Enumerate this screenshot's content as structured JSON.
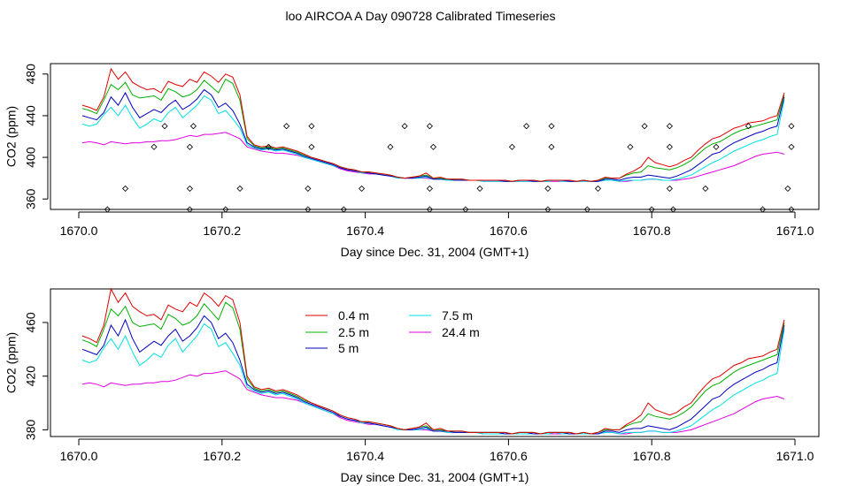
{
  "title": "loo AIRCOA A  Day 090728  Calibrated Timeseries",
  "chart_data": [
    {
      "type": "line",
      "xlabel": "Day since Dec. 31, 2004 (GMT+1)",
      "ylabel": "CO2 (ppm)",
      "xlim": [
        1670.0,
        1671.0
      ],
      "ylim": [
        350,
        490
      ],
      "xticks": [
        1670.0,
        1670.2,
        1670.4,
        1670.6,
        1670.8,
        1671.0
      ],
      "xtick_labels": [
        "1670.0",
        "1670.2",
        "1670.4",
        "1670.6",
        "1670.8",
        "1671.0"
      ],
      "yticks": [
        360,
        400,
        440,
        480
      ],
      "ytick_labels": [
        "360",
        "400",
        "440",
        "480"
      ],
      "legend": null,
      "colors": {
        "0.4 m": "#e00000",
        "2.5 m": "#00b000",
        "5 m": "#0000c0",
        "7.5 m": "#00e0e0",
        "24.4 m": "#e000e0"
      },
      "x": [
        1670.005,
        1670.015,
        1670.025,
        1670.035,
        1670.045,
        1670.055,
        1670.065,
        1670.075,
        1670.085,
        1670.095,
        1670.105,
        1670.115,
        1670.125,
        1670.135,
        1670.145,
        1670.155,
        1670.165,
        1670.175,
        1670.185,
        1670.195,
        1670.205,
        1670.215,
        1670.225,
        1670.235,
        1670.245,
        1670.255,
        1670.265,
        1670.275,
        1670.285,
        1670.295,
        1670.305,
        1670.315,
        1670.325,
        1670.335,
        1670.345,
        1670.355,
        1670.365,
        1670.375,
        1670.385,
        1670.395,
        1670.405,
        1670.415,
        1670.425,
        1670.435,
        1670.445,
        1670.455,
        1670.465,
        1670.475,
        1670.485,
        1670.495,
        1670.505,
        1670.515,
        1670.525,
        1670.535,
        1670.545,
        1670.555,
        1670.565,
        1670.575,
        1670.585,
        1670.595,
        1670.605,
        1670.615,
        1670.625,
        1670.635,
        1670.645,
        1670.655,
        1670.665,
        1670.675,
        1670.685,
        1670.695,
        1670.705,
        1670.715,
        1670.725,
        1670.735,
        1670.745,
        1670.755,
        1670.765,
        1670.775,
        1670.785,
        1670.795,
        1670.805,
        1670.815,
        1670.825,
        1670.835,
        1670.845,
        1670.855,
        1670.865,
        1670.875,
        1670.885,
        1670.895,
        1670.905,
        1670.915,
        1670.925,
        1670.935,
        1670.945,
        1670.955,
        1670.965,
        1670.975,
        1670.985
      ],
      "series": [
        {
          "name": "0.4 m",
          "values": [
            450,
            448,
            445,
            458,
            485,
            475,
            482,
            472,
            468,
            465,
            466,
            462,
            473,
            470,
            468,
            475,
            472,
            482,
            478,
            472,
            480,
            477,
            460,
            420,
            412,
            410,
            411,
            409,
            410,
            408,
            406,
            403,
            400,
            398,
            396,
            394,
            391,
            389,
            388,
            386,
            386,
            385,
            384,
            383,
            381,
            380,
            381,
            382,
            385,
            380,
            381,
            379,
            379,
            379,
            378,
            378,
            378,
            378,
            378,
            378,
            377,
            378,
            378,
            378,
            377,
            378,
            378,
            378,
            378,
            377,
            378,
            377,
            378,
            381,
            380,
            380,
            384,
            387,
            391,
            400,
            395,
            393,
            391,
            393,
            397,
            400,
            407,
            413,
            418,
            420,
            424,
            428,
            430,
            433,
            434,
            435,
            438,
            440,
            462
          ]
        },
        {
          "name": "2.5 m",
          "values": [
            447,
            445,
            442,
            455,
            470,
            465,
            472,
            460,
            457,
            458,
            459,
            455,
            466,
            463,
            458,
            460,
            465,
            474,
            468,
            462,
            475,
            471,
            455,
            418,
            411,
            409,
            410,
            408,
            409,
            407,
            405,
            402,
            400,
            398,
            396,
            394,
            391,
            389,
            388,
            386,
            386,
            385,
            384,
            383,
            381,
            380,
            381,
            382,
            383,
            380,
            380,
            379,
            379,
            379,
            378,
            378,
            378,
            378,
            378,
            378,
            377,
            378,
            378,
            378,
            377,
            378,
            378,
            378,
            378,
            377,
            378,
            377,
            378,
            380,
            380,
            380,
            383,
            385,
            386,
            392,
            390,
            389,
            388,
            390,
            393,
            397,
            403,
            409,
            413,
            415,
            419,
            423,
            426,
            428,
            430,
            432,
            434,
            436,
            460
          ]
        },
        {
          "name": "5 m",
          "values": [
            440,
            438,
            436,
            443,
            458,
            450,
            462,
            448,
            438,
            442,
            446,
            443,
            450,
            455,
            446,
            450,
            456,
            465,
            460,
            448,
            452,
            445,
            432,
            414,
            410,
            408,
            409,
            407,
            408,
            406,
            404,
            401,
            399,
            397,
            395,
            393,
            390,
            388,
            387,
            386,
            385,
            384,
            383,
            382,
            381,
            380,
            380,
            381,
            382,
            379,
            379,
            379,
            378,
            378,
            378,
            378,
            378,
            378,
            378,
            377,
            377,
            378,
            378,
            377,
            377,
            378,
            378,
            378,
            377,
            377,
            378,
            377,
            377,
            379,
            379,
            378,
            380,
            381,
            381,
            383,
            382,
            381,
            380,
            382,
            385,
            388,
            393,
            398,
            403,
            405,
            410,
            414,
            417,
            420,
            423,
            425,
            428,
            430,
            458
          ]
        },
        {
          "name": "7.5 m",
          "values": [
            432,
            430,
            432,
            441,
            448,
            440,
            450,
            438,
            428,
            432,
            437,
            434,
            443,
            448,
            438,
            444,
            450,
            459,
            455,
            442,
            445,
            437,
            428,
            412,
            409,
            407,
            408,
            406,
            407,
            405,
            403,
            400,
            398,
            396,
            394,
            392,
            390,
            388,
            387,
            385,
            385,
            384,
            383,
            382,
            380,
            380,
            380,
            380,
            381,
            379,
            379,
            378,
            378,
            378,
            378,
            378,
            377,
            377,
            377,
            377,
            377,
            377,
            377,
            377,
            377,
            377,
            378,
            377,
            377,
            377,
            377,
            377,
            377,
            378,
            378,
            377,
            378,
            378,
            378,
            379,
            379,
            378,
            378,
            379,
            381,
            383,
            387,
            391,
            395,
            398,
            402,
            406,
            409,
            412,
            415,
            417,
            420,
            422,
            455
          ]
        },
        {
          "name": "24.4 m",
          "values": [
            414,
            415,
            414,
            412,
            415,
            414,
            413,
            414,
            414,
            415,
            415,
            416,
            416,
            417,
            419,
            421,
            420,
            422,
            422,
            423,
            424,
            421,
            418,
            410,
            408,
            406,
            405,
            404,
            404,
            403,
            402,
            400,
            398,
            396,
            394,
            392,
            389,
            387,
            386,
            385,
            384,
            384,
            383,
            382,
            381,
            380,
            380,
            380,
            380,
            379,
            379,
            378,
            378,
            378,
            378,
            378,
            377,
            377,
            377,
            377,
            377,
            377,
            377,
            377,
            377,
            377,
            377,
            377,
            377,
            377,
            377,
            377,
            377,
            378,
            378,
            377,
            377,
            378,
            378,
            379,
            379,
            378,
            378,
            378,
            379,
            380,
            382,
            384,
            386,
            388,
            390,
            392,
            395,
            398,
            401,
            403,
            404,
            405,
            403
          ]
        }
      ],
      "points": {
        "x": [
          1670.04,
          1670.065,
          1670.105,
          1670.12,
          1670.155,
          1670.155,
          1670.155,
          1670.16,
          1670.205,
          1670.225,
          1670.265,
          1670.29,
          1670.32,
          1670.32,
          1670.325,
          1670.325,
          1670.37,
          1670.395,
          1670.435,
          1670.455,
          1670.49,
          1670.49,
          1670.495,
          1670.49,
          1670.54,
          1670.56,
          1670.605,
          1670.625,
          1670.655,
          1670.655,
          1670.66,
          1670.66,
          1670.71,
          1670.725,
          1670.77,
          1670.79,
          1670.8,
          1670.825,
          1670.825,
          1670.825,
          1670.83,
          1670.875,
          1670.89,
          1670.935,
          1670.955,
          1670.99,
          1670.995,
          1670.995,
          1670.995
        ],
        "y": [
          350,
          370,
          410,
          430,
          350,
          370,
          410,
          430,
          350,
          370,
          410,
          430,
          350,
          370,
          410,
          430,
          350,
          370,
          410,
          430,
          350,
          370,
          410,
          430,
          350,
          370,
          410,
          430,
          350,
          370,
          410,
          430,
          350,
          370,
          410,
          430,
          350,
          370,
          410,
          430,
          350,
          370,
          410,
          430,
          350,
          370,
          410,
          430,
          350
        ]
      }
    },
    {
      "type": "line",
      "xlabel": "Day since Dec. 31, 2004 (GMT+1)",
      "ylabel": "CO2 (ppm)",
      "xlim": [
        1670.0,
        1671.0
      ],
      "ylim": [
        375,
        485
      ],
      "xticks": [
        1670.0,
        1670.2,
        1670.4,
        1670.6,
        1670.8,
        1671.0
      ],
      "xtick_labels": [
        "1670.0",
        "1670.2",
        "1670.4",
        "1670.6",
        "1670.8",
        "1671.0"
      ],
      "yticks": [
        380,
        420,
        460
      ],
      "ytick_labels": [
        "380",
        "420",
        "460"
      ],
      "legend": "top-center",
      "legend_entries": [
        "0.4 m",
        "2.5 m",
        "5 m",
        "7.5 m",
        "24.4 m"
      ],
      "uses_same_series_as_panel": 0
    }
  ]
}
